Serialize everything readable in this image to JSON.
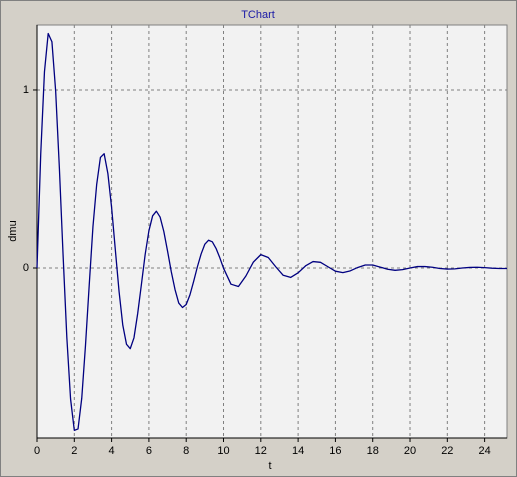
{
  "chart_data": {
    "type": "line",
    "title": "TChart",
    "x_label": "t",
    "y_label": "dmu",
    "x": [
      0,
      0.2,
      0.4,
      0.6,
      0.8,
      1.0,
      1.2,
      1.4,
      1.6,
      1.8,
      2.0,
      2.2,
      2.4,
      2.6,
      2.8,
      3.0,
      3.2,
      3.4,
      3.6,
      3.8,
      4.0,
      4.2,
      4.4,
      4.6,
      4.8,
      5.0,
      5.2,
      5.4,
      5.6,
      5.8,
      6.0,
      6.2,
      6.4,
      6.6,
      6.8,
      7.0,
      7.2,
      7.4,
      7.6,
      7.8,
      8.0,
      8.2,
      8.4,
      8.6,
      8.8,
      9.0,
      9.2,
      9.4,
      9.6,
      9.8,
      10.0,
      10.4,
      10.8,
      11.2,
      11.6,
      12.0,
      12.4,
      12.8,
      13.2,
      13.6,
      14.0,
      14.4,
      14.8,
      15.2,
      15.6,
      16.0,
      16.4,
      16.8,
      17.2,
      17.6,
      18.0,
      18.4,
      18.8,
      19.2,
      19.6,
      20.0,
      20.4,
      20.8,
      21.2,
      21.6,
      22.0,
      22.4,
      22.8,
      23.2,
      23.6,
      24.0,
      24.4,
      24.8,
      25.2
    ],
    "values": [
      0,
      0.64,
      1.102,
      1.317,
      1.271,
      0.995,
      0.561,
      0.069,
      -0.391,
      -0.736,
      -0.912,
      -0.904,
      -0.731,
      -0.435,
      -0.096,
      0.232,
      0.469,
      0.621,
      0.642,
      0.531,
      0.34,
      0.102,
      -0.132,
      -0.321,
      -0.429,
      -0.453,
      -0.392,
      -0.255,
      -0.091,
      0.076,
      0.209,
      0.293,
      0.319,
      0.286,
      0.205,
      0.095,
      -0.021,
      -0.121,
      -0.197,
      -0.222,
      -0.205,
      -0.151,
      -0.075,
      0.007,
      0.079,
      0.134,
      0.156,
      0.147,
      0.11,
      0.058,
      -0.001,
      -0.091,
      -0.104,
      -0.045,
      0.033,
      0.075,
      0.059,
      0.007,
      -0.041,
      -0.053,
      -0.027,
      0.012,
      0.036,
      0.032,
      0.007,
      -0.018,
      -0.026,
      -0.016,
      0.003,
      0.017,
      0.017,
      0.005,
      -0.007,
      -0.013,
      -0.009,
      0.0,
      0.008,
      0.008,
      0.004,
      -0.003,
      -0.006,
      -0.005,
      0.0,
      0.003,
      0.004,
      0.002,
      -0.001,
      -0.003,
      -0.003
    ],
    "color": "#000080",
    "xlim": [
      0,
      25.2
    ],
    "xticks": [
      0,
      2,
      4,
      6,
      8,
      10,
      12,
      14,
      16,
      18,
      20,
      22,
      24
    ],
    "ylim": [
      -0.955,
      1.365
    ],
    "yticks": [
      0,
      1
    ],
    "grid": true
  }
}
